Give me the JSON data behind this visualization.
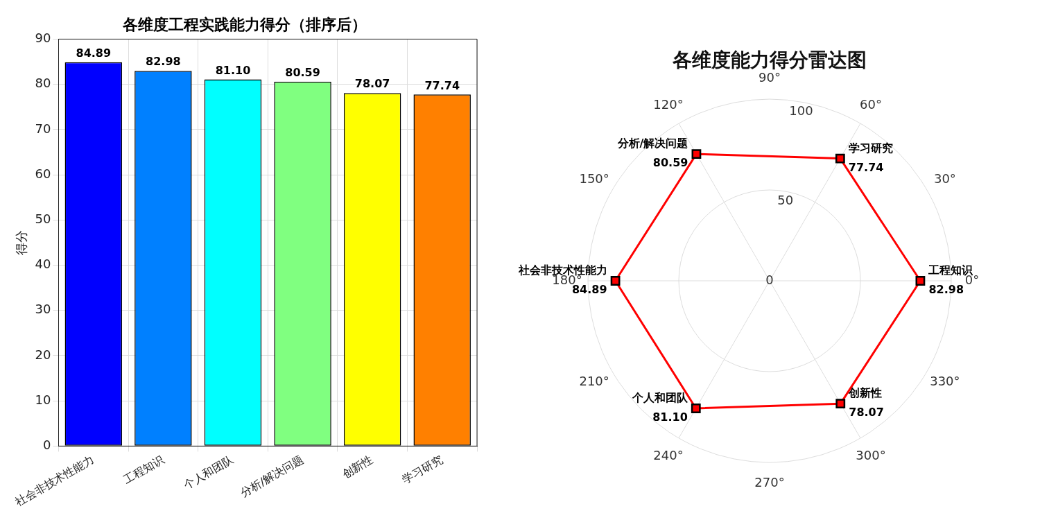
{
  "chart_data": [
    {
      "type": "bar",
      "title": "各维度工程实践能力得分（排序后）",
      "ylabel": "得分",
      "categories": [
        "社会非技术性能力",
        "工程知识",
        "个人和团队",
        "分析/解决问题",
        "创新性",
        "学习研究"
      ],
      "values": [
        84.89,
        82.98,
        81.1,
        80.59,
        78.07,
        77.74
      ],
      "value_labels": [
        "84.89",
        "82.98",
        "81.10",
        "80.59",
        "78.07",
        "77.74"
      ],
      "colors": [
        "#0000ff",
        "#0080ff",
        "#00ffff",
        "#80ff80",
        "#ffff00",
        "#ff8000"
      ],
      "ylim": [
        0,
        90
      ],
      "yticks": [
        0,
        10,
        20,
        30,
        40,
        50,
        60,
        70,
        80,
        90
      ],
      "grid": true,
      "legend": false
    },
    {
      "type": "radar",
      "title": "各维度能力得分雷达图",
      "categories": [
        "学习研究",
        "工程知识",
        "创新性",
        "个人和团队",
        "社会非技术性能力",
        "分析/解决问题"
      ],
      "series": [
        {
          "color": "#ff0000",
          "values": [
            77.74,
            82.98,
            78.07,
            81.1,
            84.89,
            80.59
          ],
          "value_labels": [
            "77.74",
            "82.98",
            "78.07",
            "81.10",
            "84.89",
            "80.59"
          ]
        }
      ],
      "ylim": [
        0,
        100
      ],
      "yticks": [
        0,
        50,
        100
      ],
      "grid": true,
      "marker": "square",
      "legend": false,
      "annotations": [
        "0°",
        "30°",
        "60°",
        "90°",
        "120°",
        "150°",
        "180°",
        "210°",
        "240°",
        "270°",
        "300°",
        "330°"
      ]
    }
  ]
}
